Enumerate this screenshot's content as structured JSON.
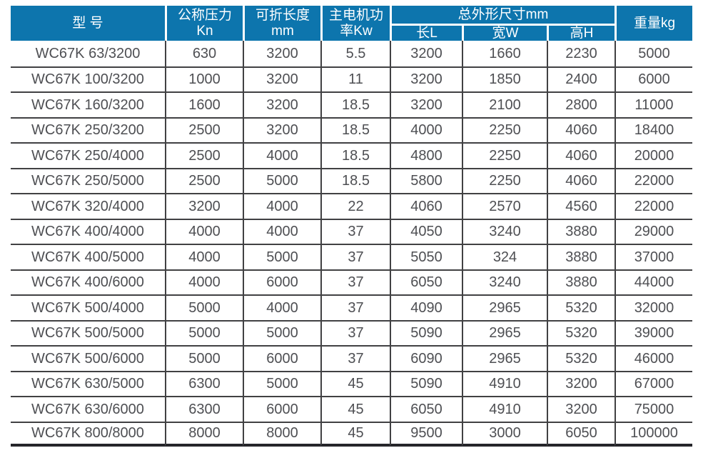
{
  "table": {
    "header": {
      "model": "型 号",
      "pressure": {
        "line1": "公称压力",
        "line2": "Kn"
      },
      "fold_length": {
        "line1": "可折长度",
        "line2": "mm"
      },
      "motor_power": {
        "line1": "主电机功",
        "line2": "率Kw"
      },
      "overall_dimensions": "总外形尺寸mm",
      "dim_sub": {
        "length": "长L",
        "width": "宽W",
        "height": "高H"
      },
      "weight": "重量kg"
    },
    "rows": [
      [
        "WC67K 63/3200",
        "630",
        "3200",
        "5.5",
        "3200",
        "1660",
        "2230",
        "5000"
      ],
      [
        "WC67K 100/3200",
        "1000",
        "3200",
        "11",
        "3200",
        "1850",
        "2400",
        "6000"
      ],
      [
        "WC67K 160/3200",
        "1600",
        "3200",
        "18.5",
        "3200",
        "2100",
        "2800",
        "11000"
      ],
      [
        "WC67K 250/3200",
        "2500",
        "3200",
        "18.5",
        "4000",
        "2250",
        "4060",
        "18400"
      ],
      [
        "WC67K 250/4000",
        "2500",
        "4000",
        "18.5",
        "4800",
        "2250",
        "4060",
        "20000"
      ],
      [
        "WC67K 250/5000",
        "2500",
        "5000",
        "18.5",
        "5800",
        "2250",
        "4060",
        "22000"
      ],
      [
        "WC67K 320/4000",
        "3200",
        "4000",
        "22",
        "4060",
        "2570",
        "4560",
        "22000"
      ],
      [
        "WC67K 400/4000",
        "4000",
        "4000",
        "37",
        "4050",
        "3240",
        "3880",
        "29000"
      ],
      [
        "WC67K 400/5000",
        "4000",
        "5000",
        "37",
        "5050",
        "324",
        "3880",
        "37000"
      ],
      [
        "WC67K 400/6000",
        "4000",
        "6000",
        "37",
        "6050",
        "3240",
        "3880",
        "44000"
      ],
      [
        "WC67K 500/4000",
        "5000",
        "4000",
        "37",
        "4090",
        "2965",
        "5320",
        "32000"
      ],
      [
        "WC67K 500/5000",
        "5000",
        "5000",
        "37",
        "5090",
        "2965",
        "5320",
        "39000"
      ],
      [
        "WC67K 500/6000",
        "5000",
        "6000",
        "37",
        "6090",
        "2965",
        "5320",
        "46000"
      ],
      [
        "WC67K 630/5000",
        "6300",
        "5000",
        "45",
        "5090",
        "4910",
        "3200",
        "67000"
      ],
      [
        "WC67K 630/6000",
        "6300",
        "6000",
        "45",
        "6050",
        "4910",
        "3200",
        "75000"
      ],
      [
        "WC67K 800/8000",
        "8000",
        "8000",
        "45",
        "9500",
        "3000",
        "6050",
        "100000"
      ]
    ]
  },
  "colors": {
    "header_background": "#0d75ad",
    "header_text": "#ffffff",
    "body_text": "#4e4f53",
    "grid_line": "#414143"
  }
}
